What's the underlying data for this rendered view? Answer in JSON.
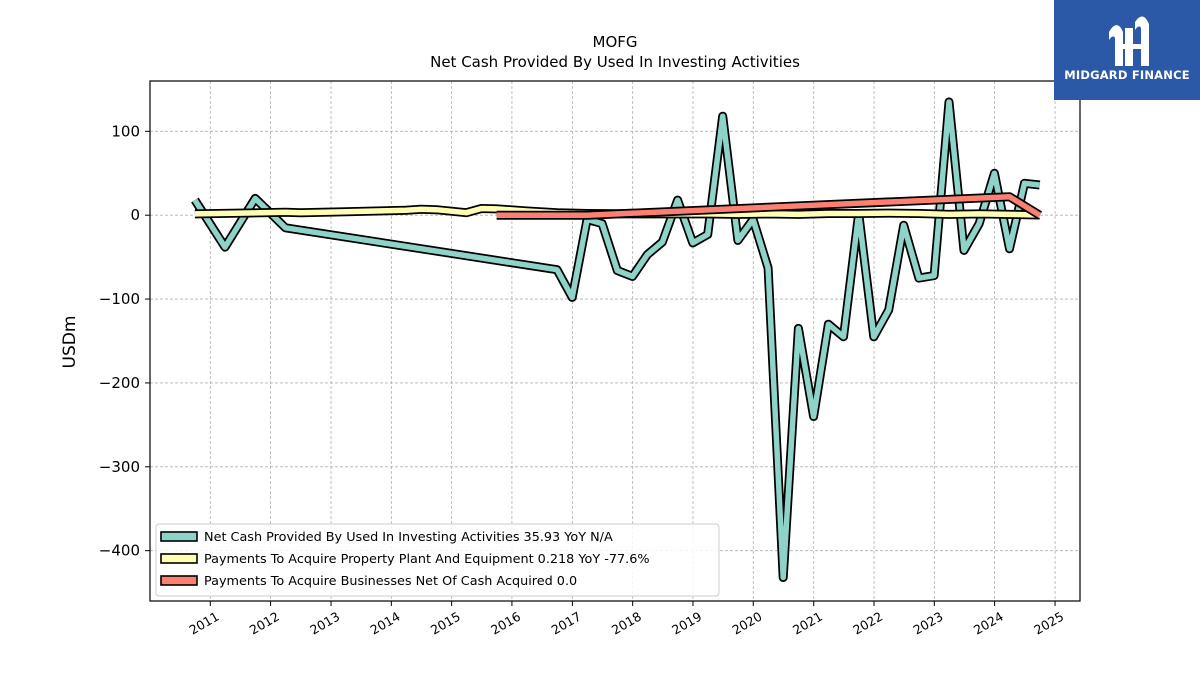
{
  "logo": {
    "text": "MIDGARD FINANCE"
  },
  "chart_data": {
    "type": "line",
    "title": "MOFG",
    "subtitle": "Net Cash Provided By Used In Investing Activities",
    "xlabel": "",
    "ylabel": "USDm",
    "xlim": [
      "2010-01-01",
      "2025-06-01"
    ],
    "ylim": [
      -460,
      160
    ],
    "x_ticks": [
      "2011",
      "2012",
      "2013",
      "2014",
      "2015",
      "2016",
      "2017",
      "2018",
      "2019",
      "2020",
      "2021",
      "2022",
      "2023",
      "2024",
      "2025"
    ],
    "y_ticks": [
      100,
      0,
      -100,
      -200,
      -300,
      -400
    ],
    "y_tick_labels": [
      "100",
      "0",
      "−100",
      "−200",
      "−300",
      "−400"
    ],
    "grid": true,
    "legend_position": "lower-left",
    "series": [
      {
        "name": "Net Cash Provided By Used In Investing Activities",
        "legend_label": "Net Cash Provided By Used In Investing Activities  35.93 YoY N/A",
        "color": "#8dd3c7",
        "points": [
          [
            "2010-09-30",
            18
          ],
          [
            "2011-03-31",
            -38
          ],
          [
            "2011-09-30",
            20
          ],
          [
            "2012-03-31",
            -15
          ],
          [
            "2016-09-30",
            -65
          ],
          [
            "2016-12-31",
            -98
          ],
          [
            "2017-03-31",
            -5
          ],
          [
            "2017-06-30",
            -10
          ],
          [
            "2017-09-30",
            -66
          ],
          [
            "2017-12-31",
            -73
          ],
          [
            "2018-03-31",
            -47
          ],
          [
            "2018-06-30",
            -32
          ],
          [
            "2018-09-30",
            18
          ],
          [
            "2018-12-31",
            -33
          ],
          [
            "2019-03-31",
            -23
          ],
          [
            "2019-06-30",
            118
          ],
          [
            "2019-09-30",
            -30
          ],
          [
            "2019-12-31",
            -5
          ],
          [
            "2020-03-31",
            -63
          ],
          [
            "2020-06-30",
            -432
          ],
          [
            "2020-09-30",
            -135
          ],
          [
            "2020-12-31",
            -240
          ],
          [
            "2021-03-31",
            -130
          ],
          [
            "2021-06-30",
            -145
          ],
          [
            "2021-09-30",
            2
          ],
          [
            "2021-12-31",
            -145
          ],
          [
            "2022-03-31",
            -113
          ],
          [
            "2022-06-30",
            -12
          ],
          [
            "2022-09-30",
            -75
          ],
          [
            "2022-12-31",
            -72
          ],
          [
            "2023-03-31",
            135
          ],
          [
            "2023-06-30",
            -42
          ],
          [
            "2023-09-30",
            -10
          ],
          [
            "2023-12-31",
            50
          ],
          [
            "2024-03-31",
            -40
          ],
          [
            "2024-06-30",
            38
          ],
          [
            "2024-09-30",
            36
          ]
        ]
      },
      {
        "name": "Payments To Acquire Property Plant And Equipment",
        "legend_label": "Payments To Acquire Property Plant And Equipment  0.218 YoY -77.6%",
        "color": "#ffffb3",
        "points": [
          [
            "2010-09-30",
            1.5
          ],
          [
            "2011-06-30",
            2.5
          ],
          [
            "2012-03-31",
            3.5
          ],
          [
            "2012-06-30",
            3
          ],
          [
            "2013-03-31",
            4
          ],
          [
            "2013-09-30",
            5
          ],
          [
            "2014-03-31",
            6
          ],
          [
            "2014-06-30",
            7
          ],
          [
            "2014-09-30",
            6.5
          ],
          [
            "2015-03-31",
            3
          ],
          [
            "2015-06-30",
            8
          ],
          [
            "2015-09-30",
            7.5
          ],
          [
            "2016-03-31",
            5
          ],
          [
            "2016-09-30",
            3
          ],
          [
            "2017-03-31",
            2
          ],
          [
            "2018-03-31",
            1.5
          ],
          [
            "2019-03-31",
            1.5
          ],
          [
            "2019-09-30",
            1
          ],
          [
            "2020-03-31",
            1.5
          ],
          [
            "2020-09-30",
            1
          ],
          [
            "2021-03-31",
            2
          ],
          [
            "2021-09-30",
            2
          ],
          [
            "2022-03-31",
            2.5
          ],
          [
            "2022-09-30",
            2
          ],
          [
            "2023-03-31",
            1
          ],
          [
            "2023-09-30",
            1.5
          ],
          [
            "2024-03-31",
            1
          ],
          [
            "2024-09-30",
            0.2
          ]
        ]
      },
      {
        "name": "Payments To Acquire Businesses Net Of Cash Acquired",
        "legend_label": "Payments To Acquire Businesses Net Of Cash Acquired  0.0",
        "color": "#fb8072",
        "points": [
          [
            "2015-09-30",
            0
          ],
          [
            "2017-03-31",
            0
          ],
          [
            "2024-03-31",
            22
          ],
          [
            "2024-09-30",
            0
          ]
        ]
      }
    ]
  }
}
